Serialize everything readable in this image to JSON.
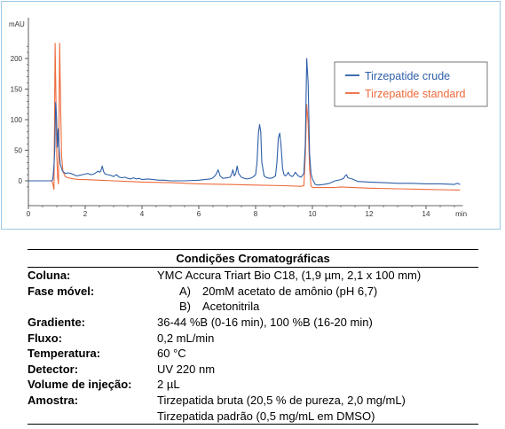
{
  "chart_data": {
    "type": "line",
    "xlabel": "min",
    "ylabel": "mAU",
    "xlim": [
      0,
      15.3
    ],
    "ylim": [
      -20,
      225
    ],
    "xticks": [
      0,
      2,
      4,
      6,
      8,
      10,
      12,
      14
    ],
    "yticks": [
      0,
      50,
      100,
      150,
      200
    ],
    "legend_placement": "top-right",
    "series": [
      {
        "name": "Tirzepatide crude",
        "color": "#2e5fa8",
        "points": [
          [
            0.0,
            0
          ],
          [
            0.82,
            0
          ],
          [
            0.86,
            2
          ],
          [
            0.9,
            25
          ],
          [
            0.93,
            55
          ],
          [
            0.96,
            128
          ],
          [
            0.99,
            105
          ],
          [
            1.02,
            55
          ],
          [
            1.05,
            85
          ],
          [
            1.08,
            52
          ],
          [
            1.12,
            28
          ],
          [
            1.2,
            16
          ],
          [
            1.3,
            12
          ],
          [
            1.4,
            13
          ],
          [
            1.5,
            12
          ],
          [
            1.6,
            10
          ],
          [
            1.7,
            8
          ],
          [
            1.8,
            9
          ],
          [
            1.9,
            10
          ],
          [
            2.0,
            11
          ],
          [
            2.1,
            12
          ],
          [
            2.2,
            10
          ],
          [
            2.3,
            11
          ],
          [
            2.4,
            14
          ],
          [
            2.45,
            16
          ],
          [
            2.5,
            14
          ],
          [
            2.55,
            16
          ],
          [
            2.6,
            24
          ],
          [
            2.65,
            15
          ],
          [
            2.7,
            11
          ],
          [
            2.8,
            10
          ],
          [
            2.9,
            9
          ],
          [
            3.0,
            7
          ],
          [
            3.1,
            10
          ],
          [
            3.2,
            6
          ],
          [
            3.3,
            5
          ],
          [
            3.4,
            6
          ],
          [
            3.5,
            4
          ],
          [
            3.6,
            3
          ],
          [
            3.7,
            5
          ],
          [
            3.8,
            3
          ],
          [
            3.9,
            4
          ],
          [
            4.0,
            2
          ],
          [
            4.2,
            3
          ],
          [
            4.4,
            2
          ],
          [
            4.6,
            1
          ],
          [
            4.8,
            1
          ],
          [
            5.0,
            0
          ],
          [
            5.5,
            0
          ],
          [
            6.0,
            1
          ],
          [
            6.2,
            2
          ],
          [
            6.4,
            3
          ],
          [
            6.5,
            5
          ],
          [
            6.6,
            10
          ],
          [
            6.68,
            18
          ],
          [
            6.75,
            8
          ],
          [
            6.85,
            4
          ],
          [
            7.0,
            5
          ],
          [
            7.1,
            6
          ],
          [
            7.15,
            10
          ],
          [
            7.2,
            18
          ],
          [
            7.25,
            8
          ],
          [
            7.3,
            12
          ],
          [
            7.35,
            24
          ],
          [
            7.4,
            12
          ],
          [
            7.5,
            6
          ],
          [
            7.6,
            4
          ],
          [
            7.7,
            3
          ],
          [
            7.8,
            4
          ],
          [
            7.9,
            6
          ],
          [
            8.0,
            10
          ],
          [
            8.05,
            30
          ],
          [
            8.1,
            78
          ],
          [
            8.14,
            92
          ],
          [
            8.18,
            80
          ],
          [
            8.22,
            30
          ],
          [
            8.3,
            8
          ],
          [
            8.4,
            5
          ],
          [
            8.5,
            4
          ],
          [
            8.6,
            5
          ],
          [
            8.7,
            8
          ],
          [
            8.75,
            30
          ],
          [
            8.8,
            70
          ],
          [
            8.85,
            78
          ],
          [
            8.9,
            55
          ],
          [
            8.95,
            20
          ],
          [
            9.0,
            10
          ],
          [
            9.05,
            8
          ],
          [
            9.1,
            10
          ],
          [
            9.15,
            14
          ],
          [
            9.2,
            9
          ],
          [
            9.3,
            7
          ],
          [
            9.35,
            10
          ],
          [
            9.4,
            14
          ],
          [
            9.5,
            8
          ],
          [
            9.6,
            6
          ],
          [
            9.7,
            12
          ],
          [
            9.75,
            60
          ],
          [
            9.8,
            200
          ],
          [
            9.85,
            160
          ],
          [
            9.9,
            45
          ],
          [
            9.95,
            12
          ],
          [
            10.0,
            3
          ],
          [
            10.1,
            -6
          ],
          [
            10.2,
            -7
          ],
          [
            10.4,
            -6
          ],
          [
            10.6,
            -4
          ],
          [
            10.8,
            0
          ],
          [
            11.0,
            2
          ],
          [
            11.1,
            4
          ],
          [
            11.15,
            8
          ],
          [
            11.2,
            10
          ],
          [
            11.25,
            5
          ],
          [
            11.4,
            3
          ],
          [
            11.6,
            -1
          ],
          [
            12.0,
            -2
          ],
          [
            12.5,
            -3
          ],
          [
            13.0,
            -4
          ],
          [
            13.5,
            -4
          ],
          [
            14.0,
            -5
          ],
          [
            14.5,
            -5
          ],
          [
            15.0,
            -6
          ],
          [
            15.1,
            -4
          ],
          [
            15.2,
            -6
          ]
        ]
      },
      {
        "name": "Tirzepatide standard",
        "color": "#ee6a3c",
        "points": [
          [
            0.0,
            0
          ],
          [
            0.82,
            0
          ],
          [
            0.86,
            -5
          ],
          [
            0.9,
            -14
          ],
          [
            0.92,
            90
          ],
          [
            0.94,
            225
          ],
          [
            0.97,
            140
          ],
          [
            1.0,
            40
          ],
          [
            1.03,
            5
          ],
          [
            1.06,
            -5
          ],
          [
            1.1,
            225
          ],
          [
            1.13,
            130
          ],
          [
            1.17,
            40
          ],
          [
            1.22,
            15
          ],
          [
            1.3,
            7
          ],
          [
            1.4,
            5
          ],
          [
            1.6,
            3
          ],
          [
            1.8,
            2
          ],
          [
            2.0,
            2
          ],
          [
            2.5,
            1
          ],
          [
            3.0,
            0
          ],
          [
            3.5,
            -1
          ],
          [
            4.0,
            -2
          ],
          [
            5.0,
            -3
          ],
          [
            6.0,
            -5
          ],
          [
            7.0,
            -6
          ],
          [
            8.0,
            -7
          ],
          [
            9.0,
            -8
          ],
          [
            9.6,
            -9
          ],
          [
            9.7,
            -8
          ],
          [
            9.75,
            40
          ],
          [
            9.8,
            125
          ],
          [
            9.85,
            95
          ],
          [
            9.9,
            20
          ],
          [
            9.95,
            -8
          ],
          [
            10.0,
            -11
          ],
          [
            10.4,
            -11
          ],
          [
            10.8,
            -11
          ],
          [
            11.0,
            -10
          ],
          [
            12.0,
            -12
          ],
          [
            13.0,
            -13
          ],
          [
            14.0,
            -14
          ],
          [
            15.0,
            -15
          ],
          [
            15.2,
            -15
          ]
        ]
      }
    ]
  },
  "conditions": {
    "title": "Condições Cromatográficas",
    "column_label": "Coluna:",
    "column_value": "YMC Accura Triart Bio C18, (1,9 µm, 2,1 x 100 mm)",
    "mobile_phase_label": "Fase móvel:",
    "mobile_phase_a_marker": "A)",
    "mobile_phase_a": "20mM acetato de amônio (pH 6,7)",
    "mobile_phase_b_marker": "B)",
    "mobile_phase_b": "Acetonitrila",
    "gradient_label": "Gradiente:",
    "gradient_value": "36-44 %B (0-16 min), 100 %B (16-20 min)",
    "flow_label": "Fluxo:",
    "flow_value": "0,2 mL/min",
    "temperature_label": "Temperatura:",
    "temperature_value": "60 °C",
    "detector_label": "Detector:",
    "detector_value": "UV 220 nm",
    "injection_label": "Volume de injeção:",
    "injection_value": "2 µL",
    "sample_label": "Amostra:",
    "sample_value_1": "Tirzepatida bruta (20,5 % de pureza, 2,0 mg/mL)",
    "sample_value_2": "Tirzepatida padrão (0,5 mg/mL em DMSO)"
  }
}
